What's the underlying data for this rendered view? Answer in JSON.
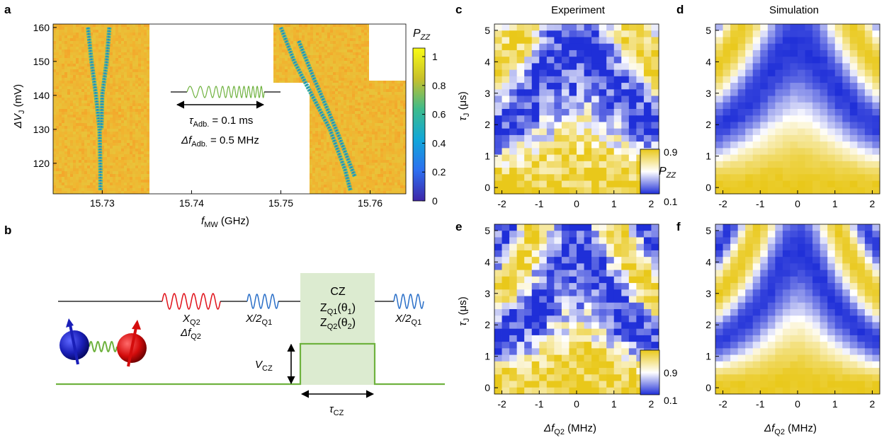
{
  "panel_labels": {
    "a": "a",
    "b": "b",
    "c": "c",
    "d": "d",
    "e": "e",
    "f": "f"
  },
  "titles": {
    "experiment": "Experiment",
    "simulation": "Simulation"
  },
  "panel_a": {
    "ylabel": "ΔV",
    "ylabel_sub": "J",
    "ylabel_unit": " (mV)",
    "xlabel": "f",
    "xlabel_sub": "MW",
    "xlabel_unit": " (GHz)",
    "x_ticks": [
      "15.73",
      "15.74",
      "15.75",
      "15.76"
    ],
    "y_ticks": [
      "160",
      "150",
      "140",
      "130",
      "120"
    ],
    "colorbar_title": "P",
    "colorbar_title_sub": "ZZ",
    "colorbar_ticks": [
      "1",
      "0.8",
      "0.6",
      "0.4",
      "0.2",
      "0"
    ],
    "inset_tau": "τ",
    "inset_tau_sub": "Adb.",
    "inset_tau_val": " = 0.1 ms",
    "inset_df": "Δf",
    "inset_df_sub": "Adb.",
    "inset_df_val": " = 0.5 MHz"
  },
  "panel_b": {
    "cz_title": "CZ",
    "cz_line1": "Z",
    "cz_line1_sub": "Q1",
    "cz_line1_arg": "(θ",
    "cz_line1_arg_sub": "1",
    "cz_line2": "Z",
    "cz_line2_sub": "Q2",
    "cz_line2_arg": "(θ",
    "cz_line2_arg_sub": "2",
    "x_q2": "X",
    "x_q2_sub": "Q2",
    "df_q2": "Δf",
    "df_q2_sub": "Q2",
    "xhalf_left": "X/2",
    "xhalf_left_sub": "Q1",
    "xhalf_right": "X/2",
    "xhalf_right_sub": "Q1",
    "vcz": "V",
    "vcz_sub": "CZ",
    "tcz": "τ",
    "tcz_sub": "CZ"
  },
  "maps": {
    "y_ticks": [
      "5",
      "4",
      "3",
      "2",
      "1",
      "0"
    ],
    "x_ticks": [
      "-2",
      "-1",
      "0",
      "1",
      "2"
    ],
    "ylabel": "τ",
    "ylabel_sub": "J",
    "ylabel_unit": " (μs)",
    "xlabel": "Δf",
    "xlabel_sub": "Q2",
    "xlabel_unit": " (MHz)",
    "colorbar_max": "0.9",
    "colorbar_min": "0.1",
    "colorbar_label": "P",
    "colorbar_label_sub": "ZZ"
  },
  "colors": {
    "yellow": "#e9c81a",
    "blue": "#1f2fd8",
    "green": "#6fb23f",
    "red": "#e0121a",
    "wire_blue": "#2a6fc8",
    "cz_fill": "#dcebd0"
  },
  "chart_data": [
    {
      "type": "heatmap",
      "panel": "a",
      "xlabel": "fMW (GHz)",
      "ylabel": "ΔVJ (mV)",
      "xlim": [
        15.7245,
        15.764
      ],
      "ylim": [
        111,
        161
      ],
      "colorbar": {
        "label": "PZZ",
        "range": [
          0,
          1
        ]
      },
      "resonance_lines": [
        {
          "points": [
            [
              15.7284,
              160
            ],
            [
              15.7288,
              150
            ],
            [
              15.7293,
              140
            ],
            [
              15.7297,
              130
            ],
            [
              15.7298,
              118
            ],
            [
              15.7298,
              112
            ]
          ]
        },
        {
          "points": [
            [
              15.7308,
              160
            ],
            [
              15.7305,
              150
            ],
            [
              15.73,
              140
            ],
            [
              15.7299,
              130
            ]
          ]
        },
        {
          "points": [
            [
              15.75,
              160
            ],
            [
              15.7515,
              150
            ],
            [
              15.7535,
              140
            ],
            [
              15.7555,
              130
            ],
            [
              15.7572,
              118
            ],
            [
              15.7578,
              112
            ]
          ]
        },
        {
          "points": [
            [
              15.752,
              156
            ],
            [
              15.7537,
              145
            ],
            [
              15.7552,
              136
            ],
            [
              15.7565,
              128
            ],
            [
              15.7583,
              116
            ]
          ]
        }
      ]
    },
    {
      "type": "heatmap",
      "panel": "c",
      "title": "Experiment",
      "xlim": [
        -2,
        2
      ],
      "ylim": [
        0,
        5
      ],
      "colorbar_range": [
        0.1,
        0.9
      ]
    },
    {
      "type": "heatmap",
      "panel": "d",
      "title": "Simulation",
      "xlim": [
        -2,
        2
      ],
      "ylim": [
        0,
        5
      ]
    },
    {
      "type": "heatmap",
      "panel": "e",
      "xlim": [
        -2,
        2
      ],
      "ylim": [
        0,
        5
      ],
      "colorbar_range": [
        0.1,
        0.9
      ]
    },
    {
      "type": "heatmap",
      "panel": "f",
      "xlim": [
        -2,
        2
      ],
      "ylim": [
        0,
        5
      ]
    }
  ]
}
